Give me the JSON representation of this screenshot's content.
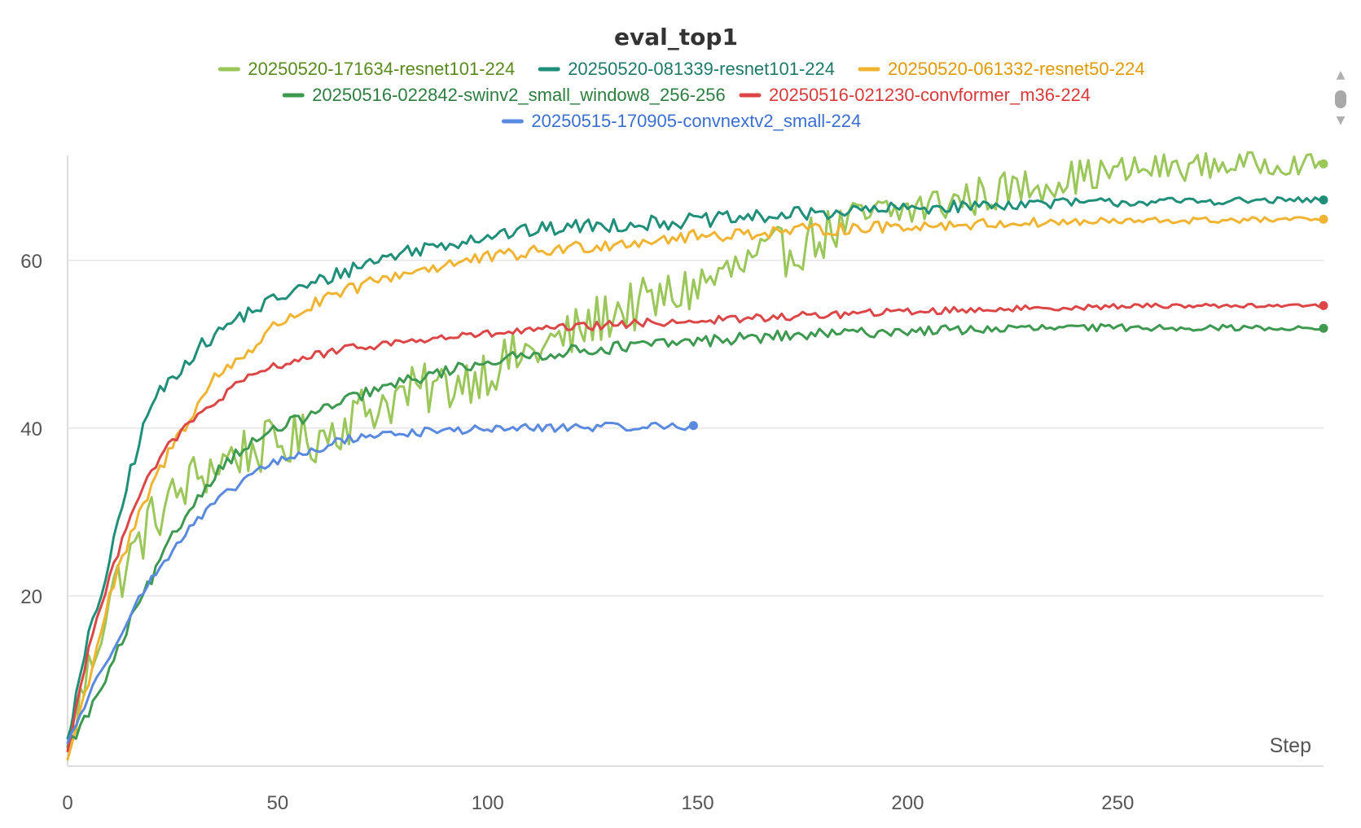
{
  "chart_data": {
    "type": "line",
    "title": "eval_top1",
    "xlabel": "Step",
    "ylabel": "",
    "xlim": [
      0,
      299
    ],
    "ylim": [
      -0.3,
      72.5
    ],
    "xticks": [
      0,
      50,
      100,
      150,
      200,
      250
    ],
    "yticks": [
      20,
      40,
      60
    ],
    "grid": true,
    "legend_position": "top-center",
    "series": [
      {
        "name": "20250520-171634-resnet101-224",
        "color": "#9ac65a",
        "text_color": "#5a8a1e",
        "end_step": 299,
        "noise": 3.2,
        "anchors": [
          [
            0,
            2
          ],
          [
            10,
            20
          ],
          [
            20,
            29
          ],
          [
            30,
            34
          ],
          [
            40,
            37
          ],
          [
            50,
            38
          ],
          [
            60,
            39
          ],
          [
            70,
            42
          ],
          [
            80,
            44
          ],
          [
            90,
            45
          ],
          [
            100,
            47
          ],
          [
            110,
            49
          ],
          [
            120,
            51
          ],
          [
            130,
            54
          ],
          [
            140,
            55
          ],
          [
            150,
            57
          ],
          [
            160,
            59
          ],
          [
            170,
            61
          ],
          [
            180,
            63
          ],
          [
            190,
            65
          ],
          [
            200,
            66
          ],
          [
            210,
            67
          ],
          [
            220,
            68
          ],
          [
            230,
            69
          ],
          [
            240,
            70
          ],
          [
            260,
            71
          ],
          [
            280,
            71.5
          ],
          [
            299,
            71.5
          ]
        ]
      },
      {
        "name": "20250520-081339-resnet101-224",
        "color": "#1f8f7a",
        "text_color": "#1f7a6a",
        "end_step": 299,
        "noise": 0.9,
        "anchors": [
          [
            0,
            3
          ],
          [
            5,
            15
          ],
          [
            10,
            24
          ],
          [
            15,
            35
          ],
          [
            20,
            43
          ],
          [
            25,
            46
          ],
          [
            30,
            49
          ],
          [
            40,
            53
          ],
          [
            50,
            55.5
          ],
          [
            60,
            57.5
          ],
          [
            70,
            59.5
          ],
          [
            80,
            61
          ],
          [
            90,
            62
          ],
          [
            100,
            63
          ],
          [
            120,
            64
          ],
          [
            140,
            64.5
          ],
          [
            160,
            65
          ],
          [
            180,
            65.7
          ],
          [
            200,
            66.2
          ],
          [
            230,
            66.8
          ],
          [
            260,
            67
          ],
          [
            299,
            67.2
          ]
        ]
      },
      {
        "name": "20250520-061332-resnet50-224",
        "color": "#f0b432",
        "text_color": "#e09a00",
        "end_step": 299,
        "noise": 0.8,
        "anchors": [
          [
            0,
            0.5
          ],
          [
            5,
            10
          ],
          [
            10,
            20
          ],
          [
            15,
            27
          ],
          [
            20,
            33
          ],
          [
            25,
            38
          ],
          [
            30,
            42
          ],
          [
            35,
            46
          ],
          [
            40,
            48
          ],
          [
            45,
            50
          ],
          [
            50,
            52.5
          ],
          [
            60,
            55
          ],
          [
            70,
            57
          ],
          [
            80,
            58.5
          ],
          [
            90,
            59.5
          ],
          [
            100,
            60.3
          ],
          [
            120,
            61.5
          ],
          [
            140,
            62.5
          ],
          [
            160,
            63.2
          ],
          [
            180,
            63.7
          ],
          [
            200,
            64.1
          ],
          [
            230,
            64.5
          ],
          [
            260,
            64.7
          ],
          [
            299,
            64.9
          ]
        ]
      },
      {
        "name": "20250516-022842-swinv2_small_window8_256-256",
        "color": "#3d9950",
        "text_color": "#2e7d40",
        "end_step": 299,
        "noise": 0.7,
        "anchors": [
          [
            0,
            2
          ],
          [
            5,
            6
          ],
          [
            10,
            11
          ],
          [
            15,
            17
          ],
          [
            20,
            22
          ],
          [
            25,
            27
          ],
          [
            30,
            31
          ],
          [
            35,
            34.5
          ],
          [
            40,
            37
          ],
          [
            45,
            38.5
          ],
          [
            50,
            40
          ],
          [
            60,
            42
          ],
          [
            70,
            44
          ],
          [
            80,
            45.5
          ],
          [
            90,
            46.8
          ],
          [
            100,
            48
          ],
          [
            120,
            49.2
          ],
          [
            140,
            50
          ],
          [
            160,
            50.7
          ],
          [
            180,
            51.2
          ],
          [
            200,
            51.6
          ],
          [
            230,
            51.9
          ],
          [
            260,
            52
          ],
          [
            299,
            51.9
          ]
        ]
      },
      {
        "name": "20250516-021230-convformer_m36-224",
        "color": "#dc4646",
        "text_color": "#d83a3a",
        "end_step": 299,
        "noise": 0.5,
        "anchors": [
          [
            0,
            1.5
          ],
          [
            5,
            14
          ],
          [
            10,
            22
          ],
          [
            15,
            30
          ],
          [
            20,
            35
          ],
          [
            25,
            38.5
          ],
          [
            30,
            41
          ],
          [
            35,
            43
          ],
          [
            40,
            45
          ],
          [
            45,
            46.5
          ],
          [
            50,
            47.5
          ],
          [
            60,
            48.8
          ],
          [
            70,
            49.7
          ],
          [
            80,
            50.3
          ],
          [
            90,
            50.8
          ],
          [
            100,
            51.2
          ],
          [
            120,
            52
          ],
          [
            140,
            52.6
          ],
          [
            160,
            53
          ],
          [
            180,
            53.5
          ],
          [
            200,
            53.9
          ],
          [
            230,
            54.3
          ],
          [
            260,
            54.6
          ],
          [
            299,
            54.6
          ]
        ]
      },
      {
        "name": "20250515-170905-convnextv2_small-224",
        "color": "#5a8ae0",
        "text_color": "#3a6fd0",
        "end_step": 149,
        "noise": 0.5,
        "anchors": [
          [
            0,
            2.5
          ],
          [
            5,
            8
          ],
          [
            10,
            13
          ],
          [
            15,
            18
          ],
          [
            20,
            22
          ],
          [
            25,
            25.5
          ],
          [
            30,
            28.5
          ],
          [
            35,
            31
          ],
          [
            40,
            33
          ],
          [
            45,
            35
          ],
          [
            50,
            36
          ],
          [
            60,
            37.5
          ],
          [
            65,
            38.5
          ],
          [
            70,
            39
          ],
          [
            80,
            39.4
          ],
          [
            90,
            39.7
          ],
          [
            100,
            39.9
          ],
          [
            120,
            40.1
          ],
          [
            140,
            40.2
          ],
          [
            149,
            40.3
          ]
        ]
      }
    ]
  },
  "ui": {
    "legend_scroll_up": "▲",
    "legend_scroll_down": "▼"
  }
}
